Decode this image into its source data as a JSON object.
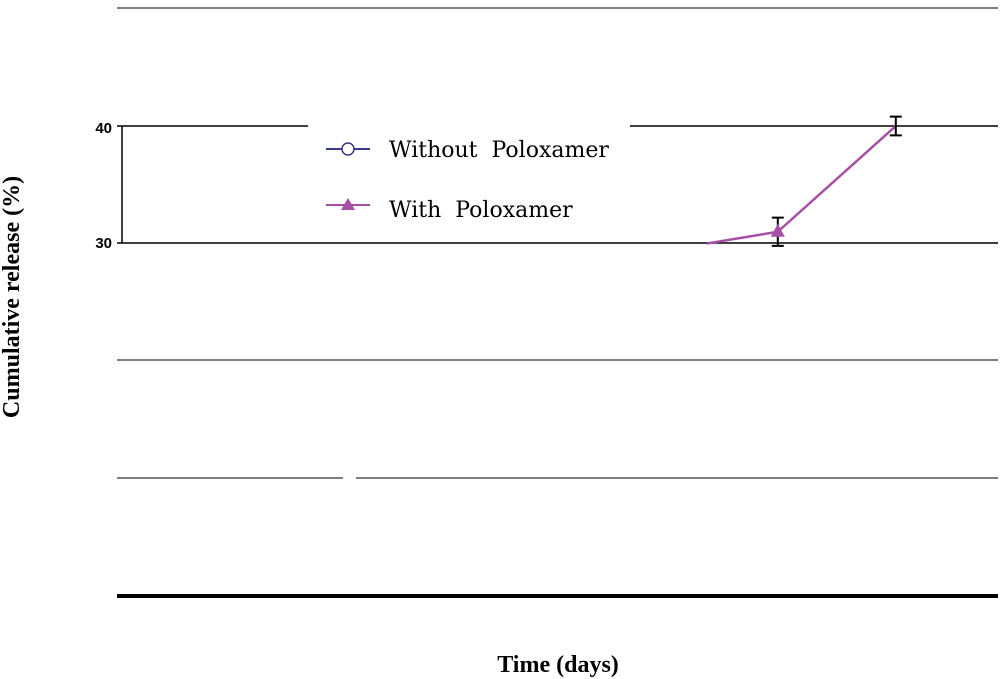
{
  "chart_data": {
    "type": "line",
    "title": "",
    "xlabel": "Time (days)",
    "ylabel": "Cumulative release (%)",
    "ylim": [
      0,
      50
    ],
    "yticks": [
      40,
      30
    ],
    "grid": true,
    "legend_placement": "top-center",
    "series": [
      {
        "name": "Without  Poloxamer",
        "color": "#3a3a8c",
        "marker": "open-circle",
        "points": []
      },
      {
        "name": "With  Poloxamer",
        "color": "#a64fa6",
        "marker": "filled-triangle",
        "points": [
          {
            "x": 25,
            "y": 30,
            "err": 0
          },
          {
            "x": 28,
            "y": 31,
            "err": 1.2
          },
          {
            "x": 33,
            "y": 40,
            "err": 0.8
          }
        ]
      }
    ]
  }
}
